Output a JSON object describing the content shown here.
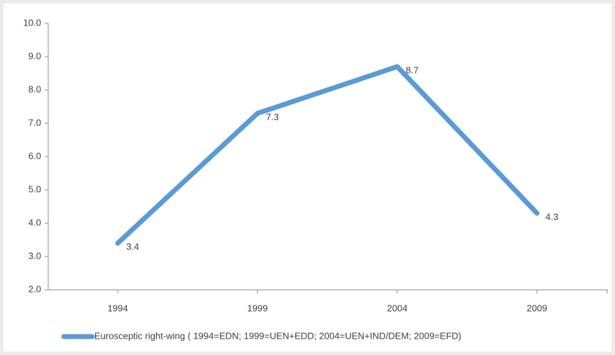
{
  "chart_data": {
    "type": "line",
    "categories": [
      "1994",
      "1999",
      "2004",
      "2009"
    ],
    "series": [
      {
        "name": "Eurosceptic right-wing ( 1994=EDN; 1999=UEN+EDD; 2004=UEN+IND/DEM; 2009=EFD)",
        "color": "#5b9bd5",
        "values": [
          3.4,
          7.3,
          8.7,
          4.3
        ]
      }
    ],
    "ylim": [
      2,
      10
    ],
    "yticks": [
      {
        "value": 2,
        "label": "2.0"
      },
      {
        "value": 3,
        "label": "3.0"
      },
      {
        "value": 4,
        "label": "4.0"
      },
      {
        "value": 5,
        "label": "5.0"
      },
      {
        "value": 6,
        "label": "6.0"
      },
      {
        "value": 7,
        "label": "7.0"
      },
      {
        "value": 8,
        "label": "8.0"
      },
      {
        "value": 9,
        "label": "9.0"
      },
      {
        "value": 10,
        "label": "10.0"
      }
    ],
    "grid": false,
    "legend": "bottom"
  }
}
